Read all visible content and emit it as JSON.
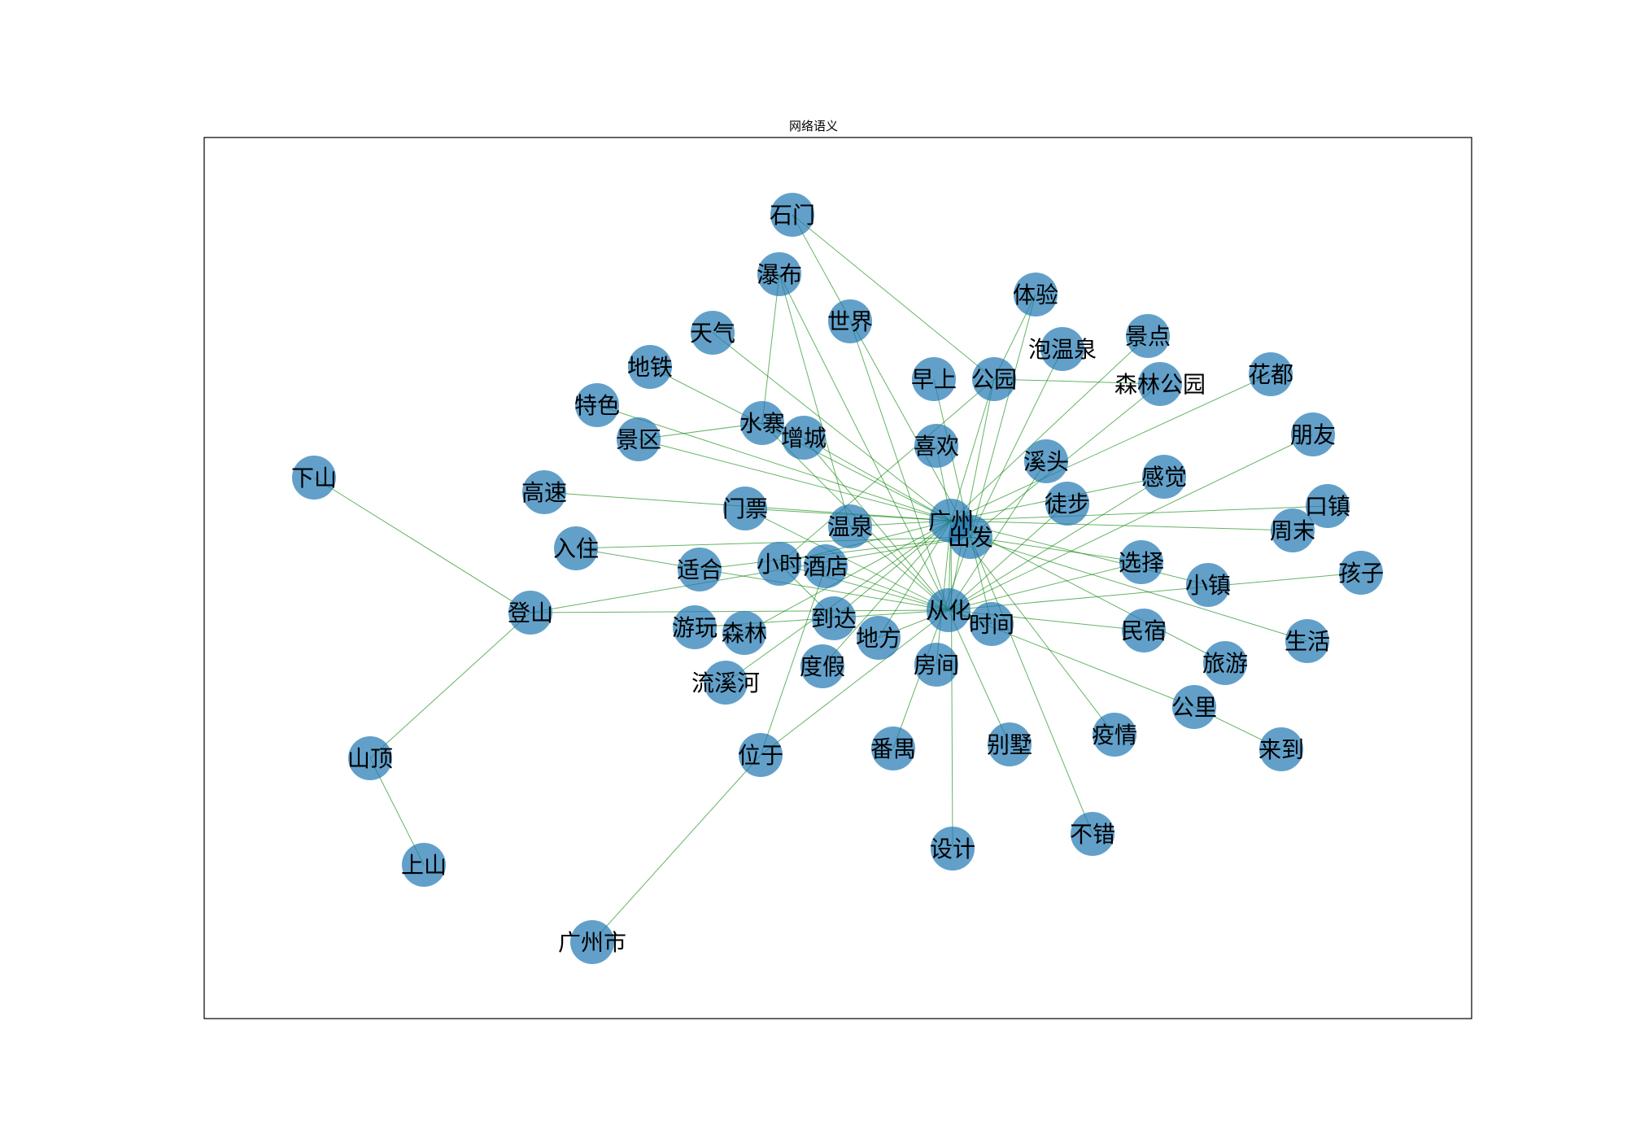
{
  "title": "网络语义",
  "colors": {
    "node": "#1f77b4",
    "edge": "#008000",
    "frame": "#000000",
    "label": "#000000"
  },
  "nodes": [
    {
      "id": "石门",
      "label": "石门"
    },
    {
      "id": "瀑布",
      "label": "瀑布"
    },
    {
      "id": "体验",
      "label": "体验"
    },
    {
      "id": "世界",
      "label": "世界"
    },
    {
      "id": "天气",
      "label": "天气"
    },
    {
      "id": "泡温泉",
      "label": "泡温泉"
    },
    {
      "id": "景点",
      "label": "景点"
    },
    {
      "id": "地铁",
      "label": "地铁"
    },
    {
      "id": "早上",
      "label": "早上"
    },
    {
      "id": "公园",
      "label": "公园"
    },
    {
      "id": "森林公园",
      "label": "森林公园"
    },
    {
      "id": "花都",
      "label": "花都"
    },
    {
      "id": "特色",
      "label": "特色"
    },
    {
      "id": "水寨",
      "label": "水寨"
    },
    {
      "id": "增城",
      "label": "增城"
    },
    {
      "id": "景区",
      "label": "景区"
    },
    {
      "id": "喜欢",
      "label": "喜欢"
    },
    {
      "id": "朋友",
      "label": "朋友"
    },
    {
      "id": "下山",
      "label": "下山"
    },
    {
      "id": "溪头",
      "label": "溪头"
    },
    {
      "id": "感觉",
      "label": "感觉"
    },
    {
      "id": "高速",
      "label": "高速"
    },
    {
      "id": "门票",
      "label": "门票"
    },
    {
      "id": "广州",
      "label": "广州"
    },
    {
      "id": "徒步",
      "label": "徒步"
    },
    {
      "id": "口镇",
      "label": "口镇"
    },
    {
      "id": "温泉",
      "label": "温泉"
    },
    {
      "id": "出发",
      "label": "出发"
    },
    {
      "id": "周末",
      "label": "周末"
    },
    {
      "id": "入住",
      "label": "入住"
    },
    {
      "id": "小时",
      "label": "小时"
    },
    {
      "id": "酒店",
      "label": "酒店"
    },
    {
      "id": "选择",
      "label": "选择"
    },
    {
      "id": "适合",
      "label": "适合"
    },
    {
      "id": "孩子",
      "label": "孩子"
    },
    {
      "id": "小镇",
      "label": "小镇"
    },
    {
      "id": "登山",
      "label": "登山"
    },
    {
      "id": "从化",
      "label": "从化"
    },
    {
      "id": "到达",
      "label": "到达"
    },
    {
      "id": "时间",
      "label": "时间"
    },
    {
      "id": "游玩",
      "label": "游玩"
    },
    {
      "id": "森林",
      "label": "森林"
    },
    {
      "id": "地方",
      "label": "地方"
    },
    {
      "id": "民宿",
      "label": "民宿"
    },
    {
      "id": "生活",
      "label": "生活"
    },
    {
      "id": "度假",
      "label": "度假"
    },
    {
      "id": "房间",
      "label": "房间"
    },
    {
      "id": "旅游",
      "label": "旅游"
    },
    {
      "id": "流溪河",
      "label": "流溪河"
    },
    {
      "id": "公里",
      "label": "公里"
    },
    {
      "id": "疫情",
      "label": "疫情"
    },
    {
      "id": "番禺",
      "label": "番禺"
    },
    {
      "id": "别墅",
      "label": "别墅"
    },
    {
      "id": "来到",
      "label": "来到"
    },
    {
      "id": "位于",
      "label": "位于"
    },
    {
      "id": "山顶",
      "label": "山顶"
    },
    {
      "id": "设计",
      "label": "设计"
    },
    {
      "id": "不错",
      "label": "不错"
    },
    {
      "id": "上山",
      "label": "上山"
    },
    {
      "id": "广州市",
      "label": "广州市"
    }
  ],
  "edges": [
    [
      "下山",
      "登山"
    ],
    [
      "登山",
      "山顶"
    ],
    [
      "山顶",
      "上山"
    ],
    [
      "位于",
      "广州市"
    ],
    [
      "登山",
      "从化"
    ],
    [
      "登山",
      "出发"
    ],
    [
      "石门",
      "公园"
    ],
    [
      "石门",
      "出发"
    ],
    [
      "瀑布",
      "温泉"
    ],
    [
      "瀑布",
      "从化"
    ],
    [
      "瀑布",
      "水寨"
    ],
    [
      "公园",
      "森林公园"
    ],
    [
      "公园",
      "从化"
    ],
    [
      "公园",
      "广州"
    ],
    [
      "公园",
      "小时"
    ],
    [
      "公园",
      "体验"
    ],
    [
      "体验",
      "出发"
    ],
    [
      "景点",
      "广州"
    ],
    [
      "泡温泉",
      "出发"
    ],
    [
      "森林公园",
      "出发"
    ],
    [
      "花都",
      "广州"
    ],
    [
      "朋友",
      "从化"
    ],
    [
      "感觉",
      "从化"
    ],
    [
      "感觉",
      "广州"
    ],
    [
      "口镇",
      "广州"
    ],
    [
      "周末",
      "广州"
    ],
    [
      "孩子",
      "从化"
    ],
    [
      "小镇",
      "广州"
    ],
    [
      "选择",
      "从化"
    ],
    [
      "选择",
      "出发"
    ],
    [
      "民宿",
      "从化"
    ],
    [
      "生活",
      "出发"
    ],
    [
      "旅游",
      "广州"
    ],
    [
      "公里",
      "从化"
    ],
    [
      "公里",
      "来到"
    ],
    [
      "疫情",
      "广州"
    ],
    [
      "不错",
      "出发"
    ],
    [
      "别墅",
      "从化"
    ],
    [
      "设计",
      "广州"
    ],
    [
      "番禺",
      "出发"
    ],
    [
      "房间",
      "广州"
    ],
    [
      "时间",
      "从化"
    ],
    [
      "时间",
      "出发"
    ],
    [
      "溪头",
      "从化"
    ],
    [
      "徒步",
      "从化"
    ],
    [
      "喜欢",
      "广州"
    ],
    [
      "早上",
      "出发"
    ],
    [
      "世界",
      "从化"
    ],
    [
      "天气",
      "广州"
    ],
    [
      "地铁",
      "广州"
    ],
    [
      "特色",
      "广州"
    ],
    [
      "景区",
      "广州"
    ],
    [
      "景区",
      "水寨"
    ],
    [
      "增城",
      "从化"
    ],
    [
      "增城",
      "广州"
    ],
    [
      "高速",
      "广州"
    ],
    [
      "门票",
      "广州"
    ],
    [
      "入住",
      "出发"
    ],
    [
      "入住",
      "从化"
    ],
    [
      "温泉",
      "广州"
    ],
    [
      "小时",
      "广州"
    ],
    [
      "小时",
      "从化"
    ],
    [
      "酒店",
      "从化"
    ],
    [
      "适合",
      "出发"
    ],
    [
      "游玩",
      "从化"
    ],
    [
      "森林",
      "广州"
    ],
    [
      "到达",
      "广州"
    ],
    [
      "到达",
      "小时"
    ],
    [
      "地方",
      "广州"
    ],
    [
      "度假",
      "广州"
    ],
    [
      "流溪河",
      "广州"
    ],
    [
      "位于",
      "从化"
    ],
    [
      "位于",
      "酒店"
    ],
    [
      "从化",
      "广州"
    ],
    [
      "出发",
      "广州"
    ],
    [
      "水寨",
      "从化"
    ],
    [
      "门票",
      "从化"
    ],
    [
      "温泉",
      "从化"
    ],
    [
      "地方",
      "从化"
    ]
  ]
}
